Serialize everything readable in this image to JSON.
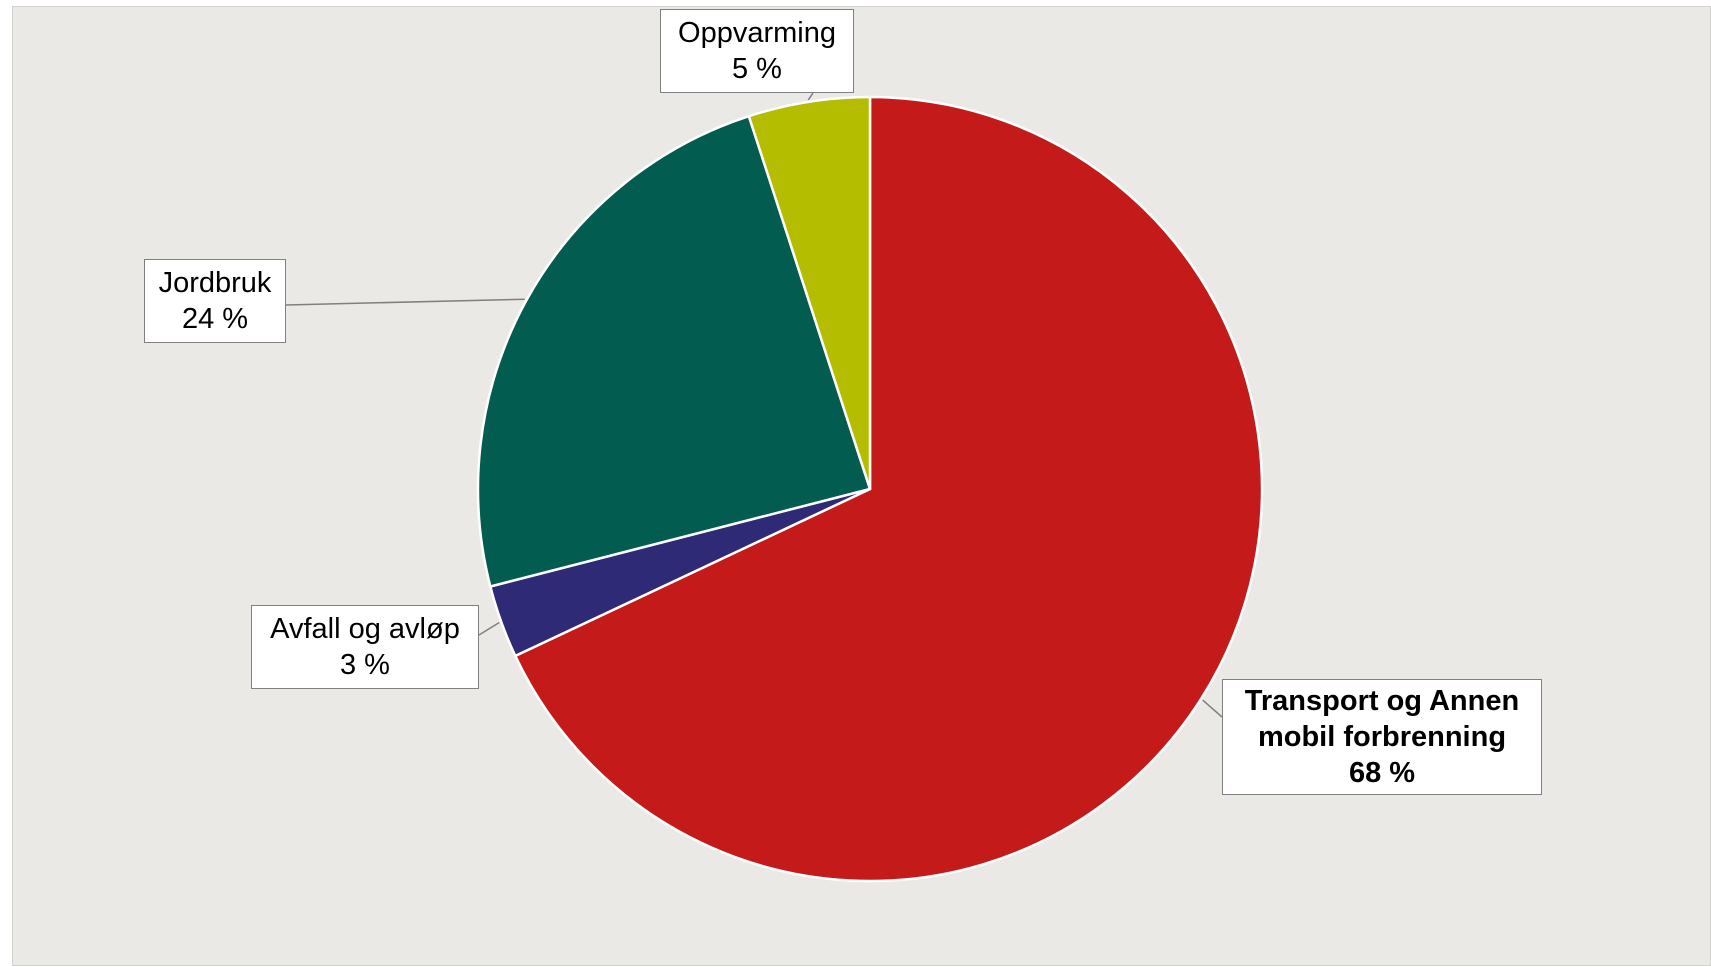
{
  "chart_data": {
    "type": "pie",
    "slices": [
      {
        "label": "Transport og Annen mobil forbrenning",
        "label_lines": [
          "Transport og Annen",
          "mobil forbrenning"
        ],
        "value": 68,
        "value_text": "68 %",
        "color": "#c41a1a",
        "bold": true
      },
      {
        "label": "Avfall og avløp",
        "label_lines": [
          "Avfall og avløp"
        ],
        "value": 3,
        "value_text": "3 %",
        "color": "#2e2a75",
        "bold": false
      },
      {
        "label": "Jordbruk",
        "label_lines": [
          "Jordbruk"
        ],
        "value": 24,
        "value_text": "24 %",
        "color": "#035c50",
        "bold": false
      },
      {
        "label": "Oppvarming",
        "label_lines": [
          "Oppvarming"
        ],
        "value": 5,
        "value_text": "5 %",
        "color": "#b5bd00",
        "bold": false
      }
    ],
    "start_angle": "12 o'clock",
    "direction": "clockwise",
    "legend": "none",
    "title": ""
  },
  "style": {
    "background": "#ebe9e5",
    "slice_border": "#ffffff",
    "leader_line": "#808080"
  }
}
